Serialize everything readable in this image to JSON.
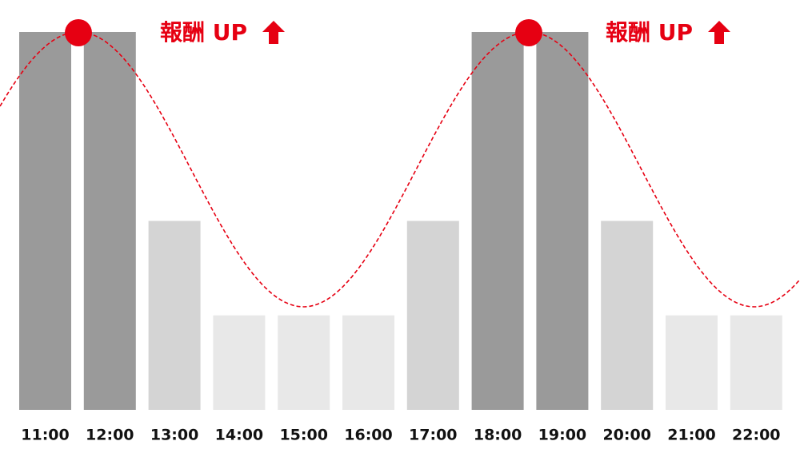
{
  "chart_data": {
    "type": "bar",
    "categories": [
      "11:00",
      "12:00",
      "13:00",
      "14:00",
      "15:00",
      "16:00",
      "17:00",
      "18:00",
      "19:00",
      "20:00",
      "21:00",
      "22:00"
    ],
    "values": [
      100,
      100,
      50,
      25,
      25,
      25,
      50,
      100,
      100,
      50,
      25,
      25
    ],
    "colors": [
      "#9a9a9a",
      "#9a9a9a",
      "#d4d4d4",
      "#e8e8e8",
      "#e8e8e8",
      "#e8e8e8",
      "#d4d4d4",
      "#9a9a9a",
      "#9a9a9a",
      "#d4d4d4",
      "#e8e8e8",
      "#e8e8e8"
    ],
    "ylim": [
      0,
      100
    ],
    "annotations": [
      "報酬 UP",
      "報酬 UP"
    ]
  }
}
